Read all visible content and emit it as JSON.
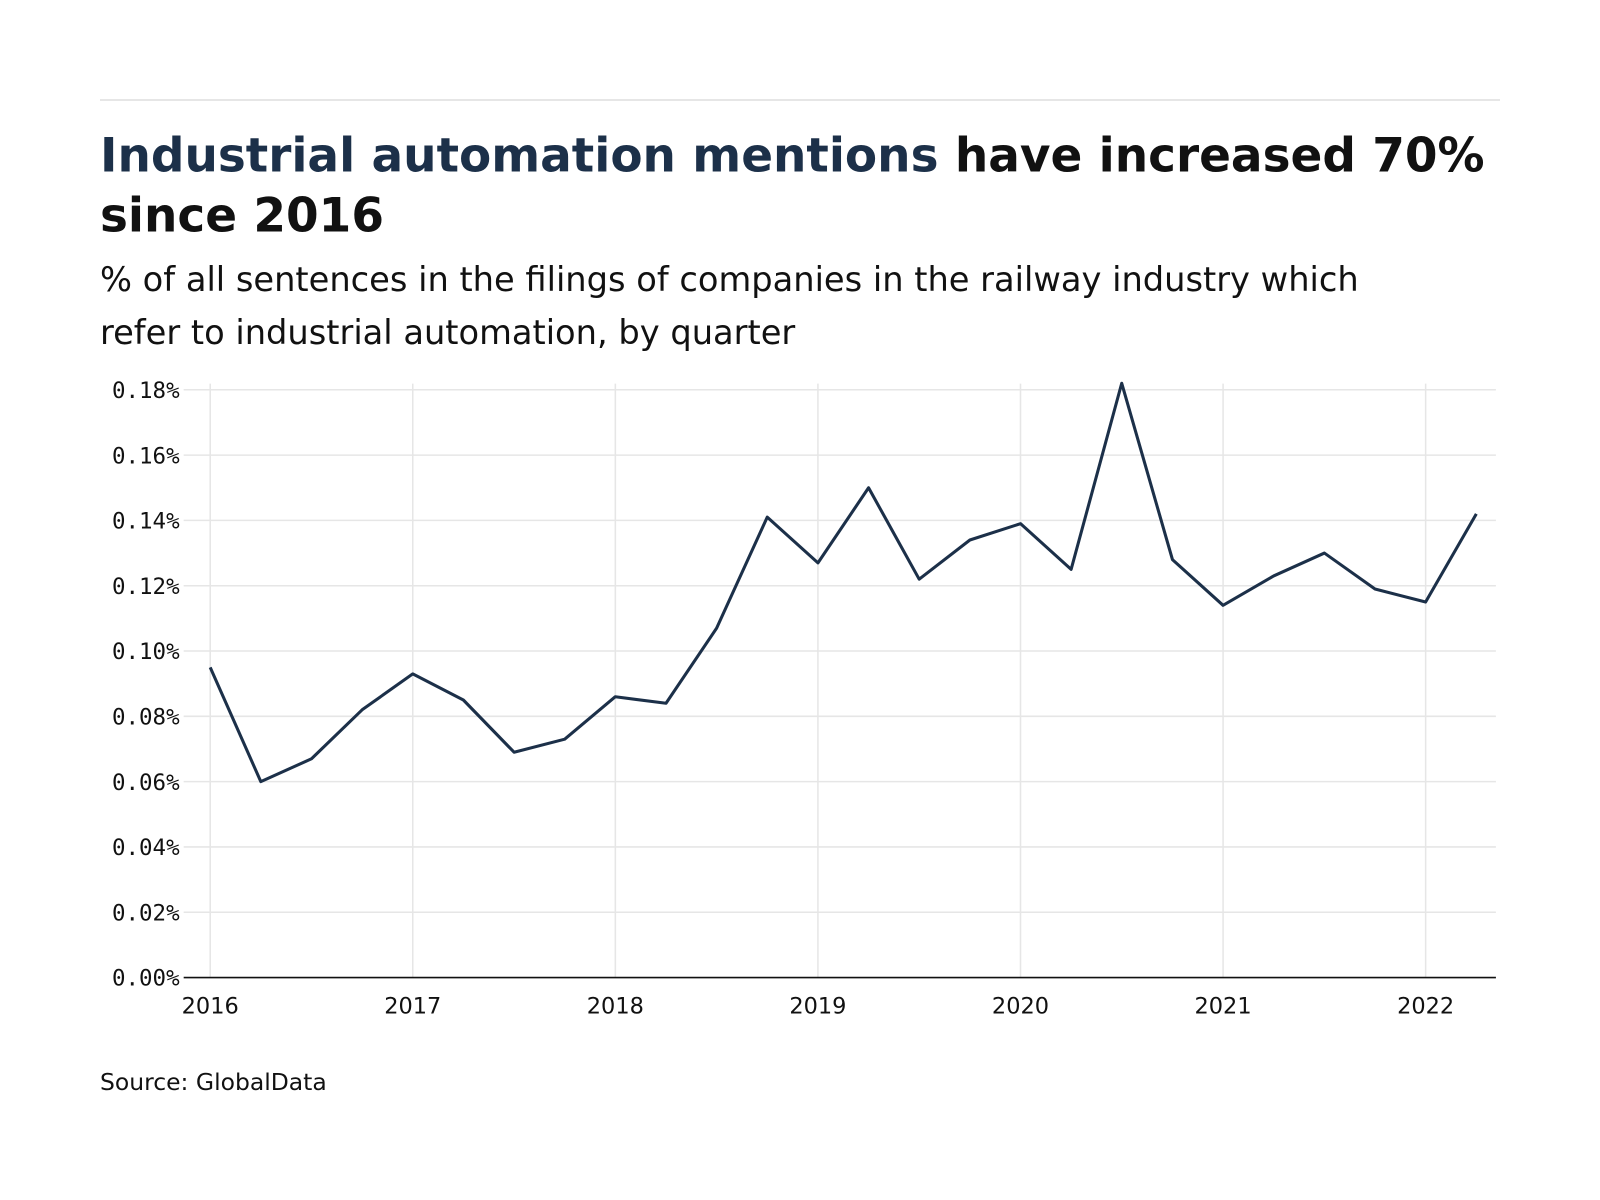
{
  "title": {
    "highlight": "Industrial automation mentions",
    "rest_line1": " have increased 70%",
    "line2": "since 2016"
  },
  "subtitle": {
    "line1": "% of all sentences in the filings of companies in the railway industry which",
    "line2": "refer to industrial automation, by quarter"
  },
  "source": "Source: GlobalData",
  "colors": {
    "accent": "#1c3049",
    "line": "#1c3049",
    "grid": "#e6e6e6",
    "text": "#111111"
  },
  "chart_data": {
    "type": "line",
    "title": "Industrial automation mentions have increased 70% since 2016",
    "xlabel": "",
    "ylabel": "% of all sentences",
    "ylim": [
      0,
      0.18
    ],
    "grid": true,
    "y_ticks": [
      "0.00%",
      "0.02%",
      "0.04%",
      "0.06%",
      "0.08%",
      "0.10%",
      "0.12%",
      "0.14%",
      "0.16%",
      "0.18%"
    ],
    "x_ticks": [
      "2016",
      "2017",
      "2018",
      "2019",
      "2020",
      "2021",
      "2022"
    ],
    "x": [
      "2016Q1",
      "2016Q2",
      "2016Q3",
      "2016Q4",
      "2017Q1",
      "2017Q2",
      "2017Q3",
      "2017Q4",
      "2018Q1",
      "2018Q2",
      "2018Q3",
      "2018Q4",
      "2019Q1",
      "2019Q2",
      "2019Q3",
      "2019Q4",
      "2020Q1",
      "2020Q2",
      "2020Q3",
      "2020Q4",
      "2021Q1",
      "2021Q2",
      "2021Q3",
      "2021Q4",
      "2022Q1",
      "2022Q2"
    ],
    "series": [
      {
        "name": "Industrial automation mentions",
        "values": [
          0.095,
          0.06,
          0.067,
          0.082,
          0.093,
          0.085,
          0.069,
          0.073,
          0.086,
          0.084,
          0.107,
          0.141,
          0.127,
          0.15,
          0.122,
          0.134,
          0.139,
          0.125,
          0.182,
          0.128,
          0.114,
          0.123,
          0.13,
          0.119,
          0.115,
          0.142
        ]
      }
    ]
  }
}
